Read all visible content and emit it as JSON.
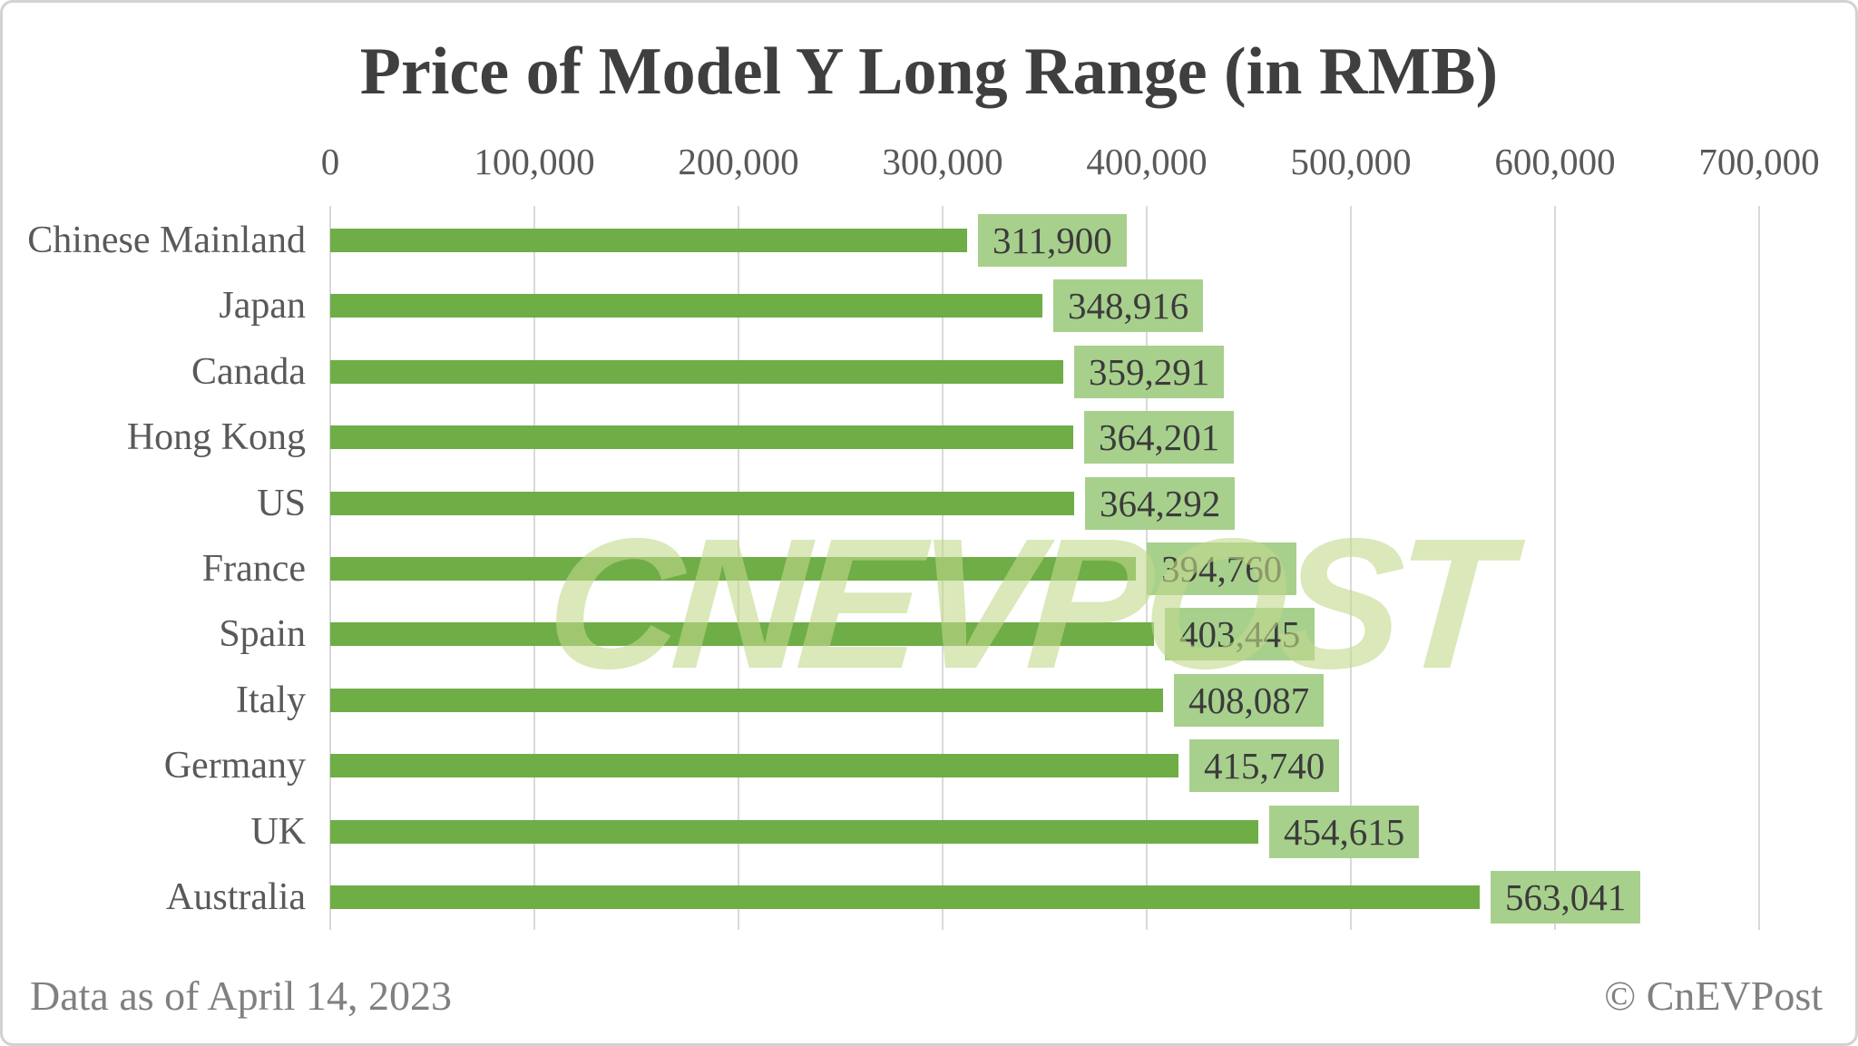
{
  "title": "Price of Model Y Long Range (in RMB)",
  "chart_data": {
    "type": "bar",
    "orientation": "horizontal",
    "title": "Price of Model Y Long Range (in RMB)",
    "categories": [
      "Chinese Mainland",
      "Japan",
      "Canada",
      "Hong Kong",
      "US",
      "France",
      "Spain",
      "Italy",
      "Germany",
      "UK",
      "Australia"
    ],
    "values": [
      311900,
      348916,
      359291,
      364201,
      364292,
      394760,
      403445,
      408087,
      415740,
      454615,
      563041
    ],
    "value_labels": [
      "311,900",
      "348,916",
      "359,291",
      "364,201",
      "364,292",
      "394,760",
      "403,445",
      "408,087",
      "415,740",
      "454,615",
      "563,041"
    ],
    "x_ticks": [
      "0",
      "100,000",
      "200,000",
      "300,000",
      "400,000",
      "500,000",
      "600,000",
      "700,000"
    ],
    "x_tick_values": [
      0,
      100000,
      200000,
      300000,
      400000,
      500000,
      600000,
      700000
    ],
    "xlim": [
      0,
      700000
    ],
    "grid": true,
    "legend": false,
    "bar_color": "#6fad47",
    "chip_color": "#a8d08d",
    "chip_text_color": "#3b3b3b",
    "axis_text_color": "#595959",
    "gridline_color": "#d9d9d9"
  },
  "watermark": {
    "text": "CNEVPOST",
    "color": "rgba(193, 216, 140, 0.6)"
  },
  "footer": {
    "left": "Data as of April 14, 2023",
    "right": "© CnEVPost"
  }
}
